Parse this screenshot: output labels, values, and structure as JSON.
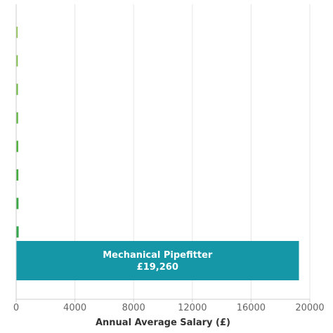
{
  "chart_data": {
    "type": "bar",
    "orientation": "horizontal",
    "xlabel": "Annual Average Salary (£)",
    "ylabel": "",
    "xlim": [
      0,
      20000
    ],
    "xticks": [
      0,
      4000,
      8000,
      12000,
      16000,
      20000
    ],
    "grid": "vertical gridlines",
    "legend": "none",
    "categories": [
      "",
      "",
      "",
      "",
      "",
      "",
      "",
      "",
      "",
      "Mechanical Pipefitter"
    ],
    "values": [
      100,
      110,
      120,
      130,
      140,
      150,
      160,
      170,
      180,
      19260
    ],
    "value_labels": [
      "",
      "",
      "",
      "",
      "",
      "",
      "",
      "",
      "",
      "£19,260"
    ],
    "colors": [
      "#8dc34a",
      "#7cbd45",
      "#6cb840",
      "#5db43e",
      "#4faf3d",
      "#44ab3e",
      "#3ba845",
      "#33a54b",
      "#2da553",
      "#1597a8"
    ]
  }
}
